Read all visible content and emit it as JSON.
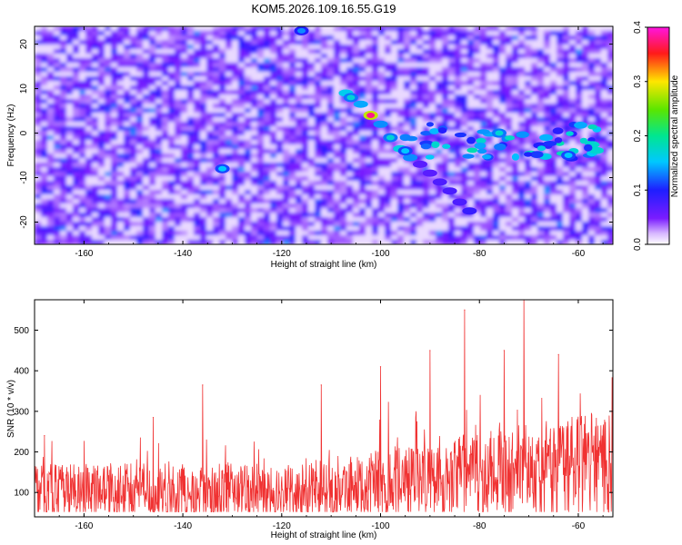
{
  "title": "KOM5.2026.109.16.55.G19",
  "chart_data": [
    {
      "type": "heatmap",
      "name": "spectrogram",
      "xlabel": "Height of straight line (km)",
      "ylabel": "Frequency (Hz)",
      "xlim": [
        -170,
        -53
      ],
      "ylim": [
        -25,
        24
      ],
      "xticks": [
        -160,
        -140,
        -120,
        -100,
        -80,
        -60
      ],
      "xtick_labels": [
        "-160",
        "-140",
        "-120",
        "-100",
        "-80",
        "-60"
      ],
      "yticks": [
        -20,
        -10,
        0,
        10,
        20
      ],
      "ytick_labels": [
        "-20",
        "-10",
        "0",
        "10",
        "20"
      ],
      "colorbar": {
        "label": "Normalized spectral amplitude",
        "range": [
          0.0,
          0.4
        ],
        "ticks": [
          0.0,
          0.1,
          0.2,
          0.3,
          0.4
        ],
        "tick_labels": [
          "0.0",
          "0.1",
          "0.2",
          "0.3",
          "0.4"
        ],
        "colors": [
          "#ffffff",
          "#7a1cff",
          "#1e1eff",
          "#00c8ff",
          "#00e690",
          "#5ae600",
          "#ffe600",
          "#ff1a1a",
          "#ff14e0"
        ]
      },
      "features": [
        {
          "x": -102,
          "y": 4,
          "amp": 0.4
        },
        {
          "x": -106,
          "y": 8,
          "amp": 0.18
        },
        {
          "x": -98,
          "y": -1,
          "amp": 0.18
        },
        {
          "x": -95,
          "y": -4,
          "amp": 0.16
        },
        {
          "x": -76,
          "y": 0,
          "amp": 0.18
        },
        {
          "x": -62,
          "y": -5,
          "amp": 0.16
        },
        {
          "x": -132,
          "y": -8,
          "amp": 0.16
        },
        {
          "x": -116,
          "y": 23,
          "amp": 0.14
        }
      ]
    },
    {
      "type": "line",
      "name": "snr",
      "xlabel": "Height of straight line (km)",
      "ylabel": "SNR (10 * v/v)",
      "xlim": [
        -170,
        -53
      ],
      "ylim": [
        40,
        575
      ],
      "xticks": [
        -160,
        -140,
        -120,
        -100,
        -80,
        -60
      ],
      "xtick_labels": [
        "-160",
        "-140",
        "-120",
        "-100",
        "-80",
        "-60"
      ],
      "yticks": [
        100,
        200,
        300,
        400,
        500
      ],
      "ytick_labels": [
        "100",
        "200",
        "300",
        "400",
        "500"
      ],
      "color": "#f03232",
      "peaks": [
        {
          "x": -168,
          "y": 240
        },
        {
          "x": -146,
          "y": 285
        },
        {
          "x": -136,
          "y": 365
        },
        {
          "x": -112,
          "y": 365
        },
        {
          "x": -100,
          "y": 410
        },
        {
          "x": -90,
          "y": 450
        },
        {
          "x": -83,
          "y": 550
        },
        {
          "x": -75,
          "y": 450
        },
        {
          "x": -71,
          "y": 575
        },
        {
          "x": -64,
          "y": 440
        }
      ]
    }
  ]
}
